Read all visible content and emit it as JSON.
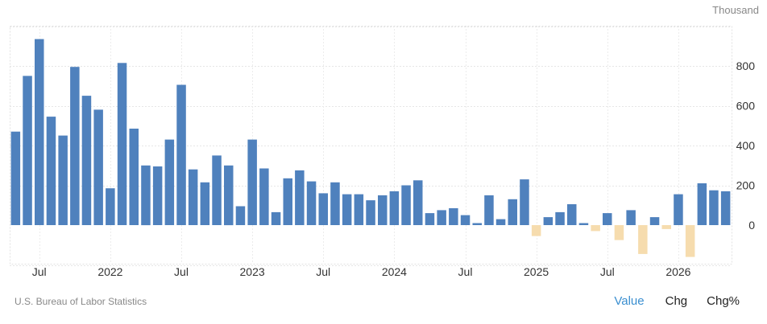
{
  "unit_label": "Thousand",
  "source": "U.S. Bureau of Labor Statistics",
  "tabs": {
    "value": "Value",
    "chg": "Chg",
    "chgpct": "Chg%"
  },
  "colors": {
    "positive": "#4f81bd",
    "negative": "#f6dcae",
    "active_tab": "#3b8fd0"
  },
  "chart_data": {
    "type": "bar",
    "ylim": [
      -210,
      1000
    ],
    "yticks": [
      0,
      200,
      400,
      600,
      800
    ],
    "grid": true,
    "xtick_labels": [
      {
        "label": "Jul",
        "index": 2.5
      },
      {
        "label": "2022",
        "index": 8.5
      },
      {
        "label": "Jul",
        "index": 14.5
      },
      {
        "label": "2023",
        "index": 20.5
      },
      {
        "label": "Jul",
        "index": 26.5
      },
      {
        "label": "2024",
        "index": 32.5
      },
      {
        "label": "Jul",
        "index": 38.5
      },
      {
        "label": "2025",
        "index": 44.5
      },
      {
        "label": "Jul",
        "index": 50.5
      },
      {
        "label": "2026",
        "index": 56.5
      }
    ],
    "values": [
      470,
      750,
      935,
      545,
      450,
      795,
      650,
      580,
      185,
      815,
      485,
      300,
      295,
      430,
      705,
      280,
      215,
      350,
      300,
      95,
      430,
      285,
      65,
      235,
      275,
      220,
      160,
      215,
      155,
      155,
      125,
      150,
      170,
      200,
      225,
      60,
      75,
      85,
      50,
      10,
      150,
      30,
      130,
      230,
      -55,
      40,
      65,
      105,
      10,
      -30,
      60,
      -75,
      75,
      -145,
      40,
      -20,
      155,
      -160,
      210,
      175,
      170
    ]
  }
}
